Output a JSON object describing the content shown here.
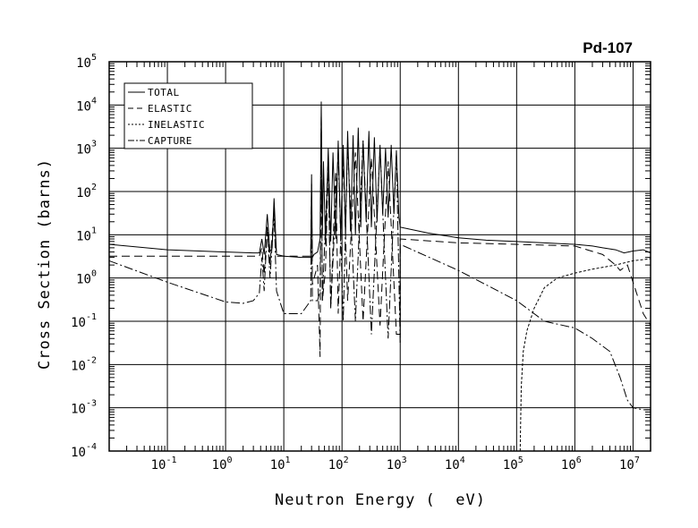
{
  "chart_data": {
    "type": "line",
    "title": "Pd-107",
    "xlabel": "Neutron Energy (  eV)",
    "ylabel": "Cross Section (barns)",
    "x_scale": "log",
    "y_scale": "log",
    "xlim": [
      0.01,
      20000000
    ],
    "ylim": [
      0.0001,
      100000
    ],
    "grid": true,
    "legend_position": "top-left",
    "x_ticks": [
      {
        "base": "10",
        "exp": "-1",
        "value": 0.1
      },
      {
        "base": "10",
        "exp": "0",
        "value": 1
      },
      {
        "base": "10",
        "exp": "1",
        "value": 10
      },
      {
        "base": "10",
        "exp": "2",
        "value": 100
      },
      {
        "base": "10",
        "exp": "3",
        "value": 1000
      },
      {
        "base": "10",
        "exp": "4",
        "value": 10000
      },
      {
        "base": "10",
        "exp": "5",
        "value": 100000
      },
      {
        "base": "10",
        "exp": "6",
        "value": 1000000
      },
      {
        "base": "10",
        "exp": "7",
        "value": 10000000
      }
    ],
    "y_ticks": [
      {
        "base": "10",
        "exp": "-4",
        "value": 0.0001
      },
      {
        "base": "10",
        "exp": "-3",
        "value": 0.001
      },
      {
        "base": "10",
        "exp": "-2",
        "value": 0.01
      },
      {
        "base": "10",
        "exp": "-1",
        "value": 0.1
      },
      {
        "base": "10",
        "exp": "0",
        "value": 1
      },
      {
        "base": "10",
        "exp": "1",
        "value": 10
      },
      {
        "base": "10",
        "exp": "2",
        "value": 100
      },
      {
        "base": "10",
        "exp": "3",
        "value": 1000
      },
      {
        "base": "10",
        "exp": "4",
        "value": 10000
      },
      {
        "base": "10",
        "exp": "5",
        "value": 100000
      }
    ],
    "series": [
      {
        "name": "TOTAL",
        "dash": "solid",
        "x": [
          0.01,
          0.1,
          1,
          3,
          3.8,
          4.2,
          4.6,
          5.2,
          5.8,
          6.3,
          6.8,
          7.5,
          10,
          20,
          29,
          30,
          31,
          33,
          38,
          42,
          44,
          46,
          48,
          52,
          58,
          64,
          70,
          78,
          86,
          95,
          105,
          115,
          125,
          140,
          155,
          170,
          190,
          210,
          230,
          260,
          290,
          320,
          360,
          400,
          450,
          500,
          560,
          620,
          700,
          780,
          860,
          950,
          1000,
          1000,
          3000,
          10000,
          30000,
          100000,
          300000,
          1000000,
          2000000,
          3000000,
          5000000,
          7000000,
          10000000,
          15000000,
          20000000
        ],
        "y": [
          6,
          4.5,
          4,
          3.8,
          3.8,
          8,
          3.5,
          30,
          4,
          5,
          70,
          3.5,
          3.2,
          3,
          3,
          250,
          3,
          3.5,
          4,
          8,
          12000,
          10,
          500,
          6,
          1000,
          7,
          800,
          8,
          1500,
          9,
          1200,
          10,
          2500,
          12,
          2000,
          10,
          3000,
          15,
          1500,
          20,
          2500,
          15,
          1800,
          20,
          1200,
          30,
          1000,
          25,
          1200,
          30,
          900,
          25,
          15,
          15,
          11,
          8.5,
          7.5,
          7,
          6.5,
          6,
          5.5,
          5,
          4.5,
          3.8,
          4.2,
          4.5,
          3.8
        ]
      },
      {
        "name": "ELASTIC",
        "dash": "long-dash",
        "x": [
          0.01,
          0.1,
          1,
          3.8,
          4.2,
          4.6,
          5.2,
          5.8,
          6.8,
          7.5,
          10,
          29,
          30,
          31,
          38,
          42,
          44,
          46,
          52,
          58,
          64,
          78,
          86,
          105,
          125,
          170,
          230,
          320,
          450,
          620,
          860,
          1000,
          1000,
          10000,
          100000,
          1000000,
          3000000,
          5000000,
          6000000,
          8000000,
          10000000,
          15000000,
          20000000
        ],
        "y": [
          3.2,
          3.2,
          3.2,
          3.2,
          5,
          1.2,
          15,
          2,
          40,
          3.2,
          3.2,
          3.2,
          150,
          0.7,
          2,
          0.015,
          6000,
          0.3,
          1.5,
          400,
          0.2,
          300,
          0.15,
          500,
          0.3,
          800,
          0.1,
          600,
          0.08,
          500,
          0.05,
          0.05,
          8,
          6.5,
          6,
          5.5,
          3.5,
          2,
          1.5,
          2,
          0.8,
          0.15,
          0.08
        ]
      },
      {
        "name": "INELASTIC",
        "dash": "short-dash",
        "x": [
          115000,
          120000,
          130000,
          150000,
          200000,
          300000,
          500000,
          1000000,
          2000000,
          5000000,
          10000000,
          20000000
        ],
        "y": [
          0.0001,
          0.003,
          0.02,
          0.06,
          0.2,
          0.6,
          1,
          1.3,
          1.6,
          2,
          2.5,
          2.8
        ]
      },
      {
        "name": "CAPTURE",
        "dash": "dash-dot",
        "x": [
          0.01,
          0.1,
          1,
          2,
          3,
          3.8,
          4.2,
          4.6,
          5.2,
          5.8,
          6.8,
          7.5,
          10,
          20,
          29,
          30,
          31,
          38,
          42,
          44,
          46,
          58,
          64,
          86,
          105,
          125,
          170,
          230,
          320,
          450,
          620,
          860,
          1000,
          1000,
          10000,
          100000,
          300000,
          1000000,
          2000000,
          4000000,
          6000000,
          8000000,
          10000000,
          15000000,
          20000000
        ],
        "y": [
          2.5,
          0.8,
          0.28,
          0.26,
          0.3,
          0.45,
          3,
          0.5,
          15,
          1,
          30,
          0.5,
          0.15,
          0.15,
          0.3,
          80,
          0.3,
          0.3,
          0.5,
          6000,
          0.3,
          600,
          0.2,
          800,
          0.1,
          1200,
          0.1,
          1500,
          0.05,
          1000,
          0.04,
          800,
          0.03,
          6,
          1.5,
          0.3,
          0.1,
          0.07,
          0.04,
          0.02,
          0.005,
          0.0015,
          0.001,
          0.0009,
          0.0009
        ]
      }
    ]
  }
}
